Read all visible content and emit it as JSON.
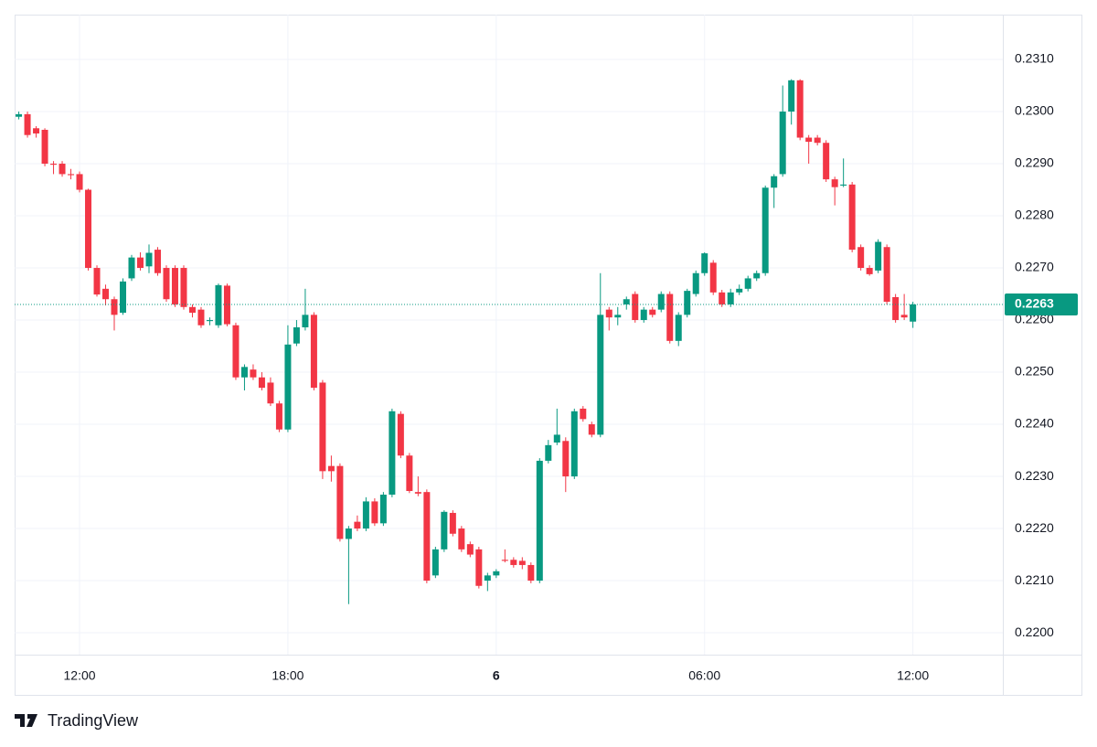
{
  "chart_data": {
    "type": "candlestick",
    "x": [
      10.25,
      10.5,
      10.75,
      11,
      11.25,
      11.5,
      11.75,
      12,
      12.25,
      12.5,
      12.75,
      13,
      13.25,
      13.5,
      13.75,
      14,
      14.25,
      14.5,
      14.75,
      15,
      15.25,
      15.5,
      15.75,
      16,
      16.25,
      16.5,
      16.75,
      17,
      17.25,
      17.5,
      17.75,
      18,
      18.25,
      18.5,
      18.75,
      19,
      19.25,
      19.5,
      19.75,
      20,
      20.25,
      20.5,
      20.75,
      21,
      21.25,
      21.5,
      21.75,
      22,
      22.25,
      22.5,
      22.75,
      23,
      23.25,
      23.5,
      23.75,
      24,
      24.25,
      24.5,
      24.75,
      25,
      25.25,
      25.5,
      25.75,
      26,
      26.25,
      26.5,
      26.75,
      27,
      27.25,
      27.5,
      27.75,
      28,
      28.25,
      28.5,
      28.75,
      29,
      29.25,
      29.5,
      29.75,
      30,
      30.25,
      30.5,
      30.75,
      31,
      31.25,
      31.5,
      31.75,
      32,
      32.25,
      32.5,
      32.75,
      33,
      33.25,
      33.5,
      33.75,
      34,
      34.25,
      34.5,
      34.75,
      35,
      35.25,
      35.5,
      35.75,
      36
    ],
    "open": [
      0.2299,
      0.22995,
      0.22968,
      0.22965,
      0.229,
      0.229,
      0.2288,
      0.2288,
      0.2285,
      0.227,
      0.2266,
      0.2264,
      0.22614,
      0.2268,
      0.2272,
      0.22703,
      0.22735,
      0.227,
      0.227,
      0.227,
      0.22625,
      0.2262,
      0.22598,
      0.2259,
      0.22666,
      0.2259,
      0.2249,
      0.22505,
      0.2249,
      0.2248,
      0.2244,
      0.2239,
      0.22555,
      0.22586,
      0.2261,
      0.2248,
      0.2232,
      0.2232,
      0.2218,
      0.22213,
      0.222,
      0.22252,
      0.2221,
      0.22265,
      0.2242,
      0.2234,
      0.2227,
      0.2227,
      0.2211,
      0.2216,
      0.2223,
      0.222,
      0.2217,
      0.2216,
      0.221,
      0.2211,
      0.2214,
      0.2214,
      0.22138,
      0.2213,
      0.221,
      0.2233,
      0.22365,
      0.22368,
      0.223,
      0.2243,
      0.224,
      0.2238,
      0.2262,
      0.22605,
      0.2263,
      0.2265,
      0.226,
      0.2262,
      0.2262,
      0.2265,
      0.2256,
      0.2261,
      0.2265,
      0.2269,
      0.2271,
      0.22653,
      0.2263,
      0.22653,
      0.2266,
      0.2268,
      0.2269,
      0.22854,
      0.2288,
      0.23,
      0.2306,
      0.2295,
      0.2295,
      0.2294,
      0.2287,
      0.22858,
      0.2286,
      0.2274,
      0.227,
      0.22695,
      0.2274,
      0.22644,
      0.2261,
      0.22597
    ],
    "high": [
      0.23,
      0.23,
      0.22972,
      0.22968,
      0.22905,
      0.22905,
      0.2289,
      0.22885,
      0.22852,
      0.22705,
      0.22668,
      0.22645,
      0.2268,
      0.22725,
      0.2273,
      0.22745,
      0.2274,
      0.22705,
      0.22705,
      0.22705,
      0.2263,
      0.22625,
      0.22605,
      0.2267,
      0.2267,
      0.22595,
      0.22515,
      0.22515,
      0.225,
      0.2249,
      0.22445,
      0.2259,
      0.226,
      0.2266,
      0.22615,
      0.22485,
      0.2234,
      0.22325,
      0.22205,
      0.22225,
      0.2226,
      0.22258,
      0.2227,
      0.2243,
      0.22425,
      0.22345,
      0.223,
      0.22275,
      0.22165,
      0.22235,
      0.22235,
      0.22205,
      0.22175,
      0.22165,
      0.22115,
      0.22122,
      0.2216,
      0.22145,
      0.22145,
      0.22135,
      0.22335,
      0.2237,
      0.2243,
      0.22375,
      0.2243,
      0.22435,
      0.22405,
      0.2269,
      0.22625,
      0.22625,
      0.22645,
      0.22655,
      0.22625,
      0.22625,
      0.22655,
      0.22655,
      0.22615,
      0.2266,
      0.22695,
      0.2273,
      0.22715,
      0.22658,
      0.2266,
      0.22668,
      0.22685,
      0.22695,
      0.22858,
      0.2288,
      0.2305,
      0.23062,
      0.23062,
      0.22955,
      0.22955,
      0.22945,
      0.22875,
      0.2291,
      0.22865,
      0.22745,
      0.22705,
      0.22755,
      0.22745,
      0.2265,
      0.2265,
      0.22635
    ],
    "low": [
      0.22985,
      0.2295,
      0.2295,
      0.22895,
      0.2288,
      0.22875,
      0.2287,
      0.22845,
      0.22695,
      0.22645,
      0.22628,
      0.2258,
      0.2261,
      0.22675,
      0.22695,
      0.2269,
      0.22685,
      0.22635,
      0.22625,
      0.2262,
      0.22605,
      0.22585,
      0.2259,
      0.22585,
      0.22588,
      0.22485,
      0.22465,
      0.22485,
      0.22465,
      0.22435,
      0.22385,
      0.22385,
      0.2255,
      0.2258,
      0.22465,
      0.22295,
      0.2229,
      0.22175,
      0.22055,
      0.22195,
      0.22195,
      0.22205,
      0.22205,
      0.2226,
      0.22335,
      0.22268,
      0.22262,
      0.22095,
      0.22105,
      0.22155,
      0.22185,
      0.22155,
      0.22145,
      0.22085,
      0.2208,
      0.22105,
      0.22135,
      0.22125,
      0.22122,
      0.22095,
      0.22095,
      0.22325,
      0.2236,
      0.2227,
      0.22295,
      0.22405,
      0.22375,
      0.22375,
      0.2258,
      0.2259,
      0.2262,
      0.22595,
      0.22595,
      0.22605,
      0.22615,
      0.22555,
      0.2255,
      0.22605,
      0.22645,
      0.22685,
      0.22648,
      0.22625,
      0.22625,
      0.22648,
      0.22655,
      0.22675,
      0.22685,
      0.22815,
      0.22875,
      0.22975,
      0.22945,
      0.229,
      0.22935,
      0.22865,
      0.2282,
      0.22855,
      0.2273,
      0.22695,
      0.22685,
      0.2269,
      0.2263,
      0.22595,
      0.226,
      0.22585
    ],
    "close": [
      0.22995,
      0.22955,
      0.22958,
      0.229,
      0.22898,
      0.2288,
      0.22878,
      0.2285,
      0.227,
      0.22649,
      0.2264,
      0.2261,
      0.22674,
      0.2272,
      0.227,
      0.22729,
      0.2269,
      0.2264,
      0.2263,
      0.22625,
      0.22614,
      0.2259,
      0.226,
      0.22667,
      0.22592,
      0.2249,
      0.2251,
      0.2249,
      0.2247,
      0.2244,
      0.2239,
      0.22553,
      0.22586,
      0.2261,
      0.2247,
      0.2231,
      0.2231,
      0.2218,
      0.222,
      0.222,
      0.22252,
      0.2221,
      0.22265,
      0.22425,
      0.2234,
      0.22272,
      0.22267,
      0.221,
      0.2216,
      0.22232,
      0.2219,
      0.2216,
      0.2215,
      0.2209,
      0.2211,
      0.22118,
      0.22138,
      0.2213,
      0.2213,
      0.221,
      0.2233,
      0.2236,
      0.2238,
      0.223,
      0.22425,
      0.2241,
      0.2238,
      0.2261,
      0.22605,
      0.2261,
      0.2264,
      0.226,
      0.2262,
      0.2261,
      0.2265,
      0.2256,
      0.2261,
      0.22656,
      0.2269,
      0.22728,
      0.22653,
      0.2263,
      0.22653,
      0.2266,
      0.2268,
      0.2269,
      0.22854,
      0.22876,
      0.23,
      0.2306,
      0.2295,
      0.22942,
      0.2294,
      0.2287,
      0.22855,
      0.2286,
      0.22735,
      0.227,
      0.22688,
      0.2275,
      0.22635,
      0.226,
      0.22605,
      0.2263
    ],
    "up_color": "#089981",
    "down_color": "#f23645",
    "xlim": [
      10.13,
      38.59
    ],
    "ylim": [
      0.21958,
      0.23186
    ],
    "xticks": [
      {
        "value": 12,
        "label": "12:00"
      },
      {
        "value": 18,
        "label": "18:00"
      },
      {
        "value": 24,
        "label": "6"
      },
      {
        "value": 30,
        "label": "06:00"
      },
      {
        "value": 36,
        "label": "12:00"
      }
    ],
    "yticks": [
      {
        "value": 0.22,
        "label": "0.2200"
      },
      {
        "value": 0.221,
        "label": "0.2210"
      },
      {
        "value": 0.222,
        "label": "0.2220"
      },
      {
        "value": 0.223,
        "label": "0.2230"
      },
      {
        "value": 0.224,
        "label": "0.2240"
      },
      {
        "value": 0.225,
        "label": "0.2250"
      },
      {
        "value": 0.226,
        "label": "0.2260"
      },
      {
        "value": 0.227,
        "label": "0.2270"
      },
      {
        "value": 0.228,
        "label": "0.2280"
      },
      {
        "value": 0.229,
        "label": "0.2290"
      },
      {
        "value": 0.23,
        "label": "0.2300"
      },
      {
        "value": 0.231,
        "label": "0.2310"
      }
    ],
    "grid": true,
    "last_price": 0.2263,
    "branding": "TradingView"
  }
}
